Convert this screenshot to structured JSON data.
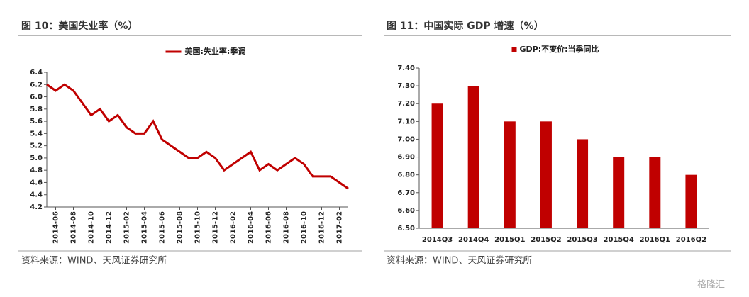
{
  "chart_data": [
    {
      "type": "line",
      "title": "图 10：美国失业率（%）",
      "source": "资料来源：WIND、天风证券研究所",
      "categories": [
        null,
        "2014-06",
        null,
        "2014-08",
        null,
        "2014-10",
        null,
        "2014-12",
        null,
        "2015-02",
        null,
        "2015-04",
        null,
        "2015-06",
        null,
        "2015-08",
        null,
        "2015-10",
        null,
        "2015-12",
        null,
        "2016-02",
        null,
        "2016-04",
        null,
        "2016-06",
        null,
        "2016-08",
        null,
        "2016-10",
        null,
        "2016-12",
        null,
        "2017-02",
        null
      ],
      "series": [
        {
          "name": "美国:失业率:季调",
          "color": "#c00000",
          "values": [
            6.2,
            6.1,
            6.2,
            6.1,
            5.9,
            5.7,
            5.8,
            5.6,
            5.7,
            5.5,
            5.4,
            5.4,
            5.6,
            5.3,
            5.2,
            5.1,
            5.0,
            5.0,
            5.1,
            5.0,
            4.8,
            4.9,
            5.0,
            5.1,
            4.8,
            4.9,
            4.8,
            4.9,
            5.0,
            4.9,
            4.7,
            4.7,
            4.7,
            4.6,
            4.5
          ]
        }
      ],
      "ylim": [
        4.2,
        6.4
      ],
      "yticks": [
        4.2,
        4.4,
        4.6,
        4.8,
        {
          "value": 5.0,
          "label": "5.0"
        },
        5.2,
        5.4,
        5.6,
        5.8,
        {
          "value": 6.0,
          "label": "6.0"
        },
        6.2,
        6.4
      ],
      "legend": "top"
    },
    {
      "type": "bar",
      "title": "图 11：中国实际 GDP 增速（%）",
      "source": "资料来源：WIND、天风证券研究所",
      "categories": [
        "2014Q3",
        "2014Q4",
        "2015Q1",
        "2015Q2",
        "2015Q3",
        "2015Q4",
        "2016Q1",
        "2016Q2"
      ],
      "series": [
        {
          "name": "GDP:不变价:当季同比",
          "color": "#c00000",
          "values": [
            7.2,
            7.3,
            7.1,
            7.1,
            7.0,
            6.9,
            6.9,
            6.8
          ]
        }
      ],
      "ylim": [
        6.5,
        7.4
      ],
      "yticks": [
        {
          "value": 6.5,
          "label": "6.50"
        },
        {
          "value": 6.6,
          "label": "6.60"
        },
        {
          "value": 6.7,
          "label": "6.70"
        },
        {
          "value": 6.8,
          "label": "6.80"
        },
        {
          "value": 6.9,
          "label": "6.90"
        },
        {
          "value": 7.0,
          "label": "7.00"
        },
        {
          "value": 7.1,
          "label": "7.10"
        },
        {
          "value": 7.2,
          "label": "7.20"
        },
        {
          "value": 7.3,
          "label": "7.30"
        },
        {
          "value": 7.4,
          "label": "7.40"
        }
      ],
      "legend": "top"
    }
  ],
  "watermark": "格隆汇"
}
